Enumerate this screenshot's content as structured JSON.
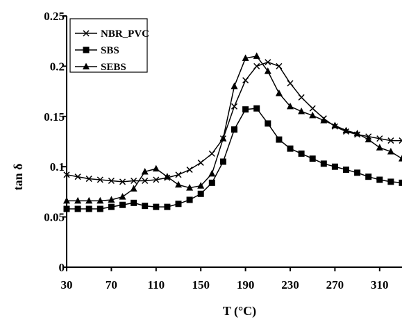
{
  "chart_data": {
    "type": "line",
    "xlabel": "T (°C)",
    "ylabel": "tan δ",
    "xlim": [
      30,
      330
    ],
    "ylim": [
      0,
      0.25
    ],
    "x_ticks": [
      30,
      70,
      110,
      150,
      190,
      230,
      270,
      310
    ],
    "x_tick_labels": [
      "30",
      "70",
      "110",
      "150",
      "190",
      "230",
      "270",
      "310"
    ],
    "y_ticks": [
      0,
      0.05,
      0.1,
      0.15,
      0.2,
      0.25
    ],
    "y_tick_labels": [
      "0",
      "0.05",
      "0.1",
      "0.15",
      "0.2",
      "0.25"
    ],
    "grid": false,
    "legend_position": "top-left",
    "colors": {
      "line": "#000000",
      "background": "#ffffff"
    },
    "series": [
      {
        "name": "NBR_PVC",
        "marker": "cross",
        "x": [
          30,
          40,
          50,
          60,
          70,
          80,
          90,
          100,
          110,
          120,
          130,
          140,
          150,
          160,
          170,
          180,
          190,
          200,
          210,
          220,
          230,
          240,
          250,
          260,
          270,
          280,
          290,
          300,
          310,
          320,
          330
        ],
        "values": [
          0.092,
          0.09,
          0.088,
          0.087,
          0.086,
          0.085,
          0.086,
          0.086,
          0.087,
          0.089,
          0.092,
          0.097,
          0.104,
          0.113,
          0.128,
          0.16,
          0.186,
          0.2,
          0.204,
          0.2,
          0.183,
          0.169,
          0.158,
          0.148,
          0.14,
          0.135,
          0.132,
          0.13,
          0.128,
          0.126,
          0.126
        ]
      },
      {
        "name": "SBS",
        "marker": "square",
        "x": [
          30,
          40,
          50,
          60,
          70,
          80,
          90,
          100,
          110,
          120,
          130,
          140,
          150,
          160,
          170,
          180,
          190,
          200,
          210,
          220,
          230,
          240,
          250,
          260,
          270,
          280,
          290,
          300,
          310,
          320,
          330
        ],
        "values": [
          0.058,
          0.058,
          0.058,
          0.058,
          0.06,
          0.062,
          0.064,
          0.061,
          0.06,
          0.06,
          0.063,
          0.067,
          0.073,
          0.084,
          0.105,
          0.137,
          0.157,
          0.158,
          0.143,
          0.127,
          0.118,
          0.113,
          0.108,
          0.103,
          0.1,
          0.097,
          0.094,
          0.09,
          0.087,
          0.085,
          0.084
        ]
      },
      {
        "name": "SEBS",
        "marker": "triangle",
        "x": [
          30,
          40,
          50,
          60,
          70,
          80,
          90,
          100,
          110,
          120,
          130,
          140,
          150,
          160,
          170,
          180,
          190,
          200,
          210,
          220,
          230,
          240,
          250,
          260,
          270,
          280,
          290,
          300,
          310,
          320,
          330
        ],
        "values": [
          0.066,
          0.066,
          0.066,
          0.066,
          0.067,
          0.07,
          0.078,
          0.095,
          0.098,
          0.09,
          0.082,
          0.079,
          0.081,
          0.093,
          0.128,
          0.18,
          0.208,
          0.21,
          0.195,
          0.173,
          0.16,
          0.155,
          0.151,
          0.146,
          0.141,
          0.136,
          0.133,
          0.127,
          0.119,
          0.115,
          0.108
        ]
      }
    ]
  }
}
